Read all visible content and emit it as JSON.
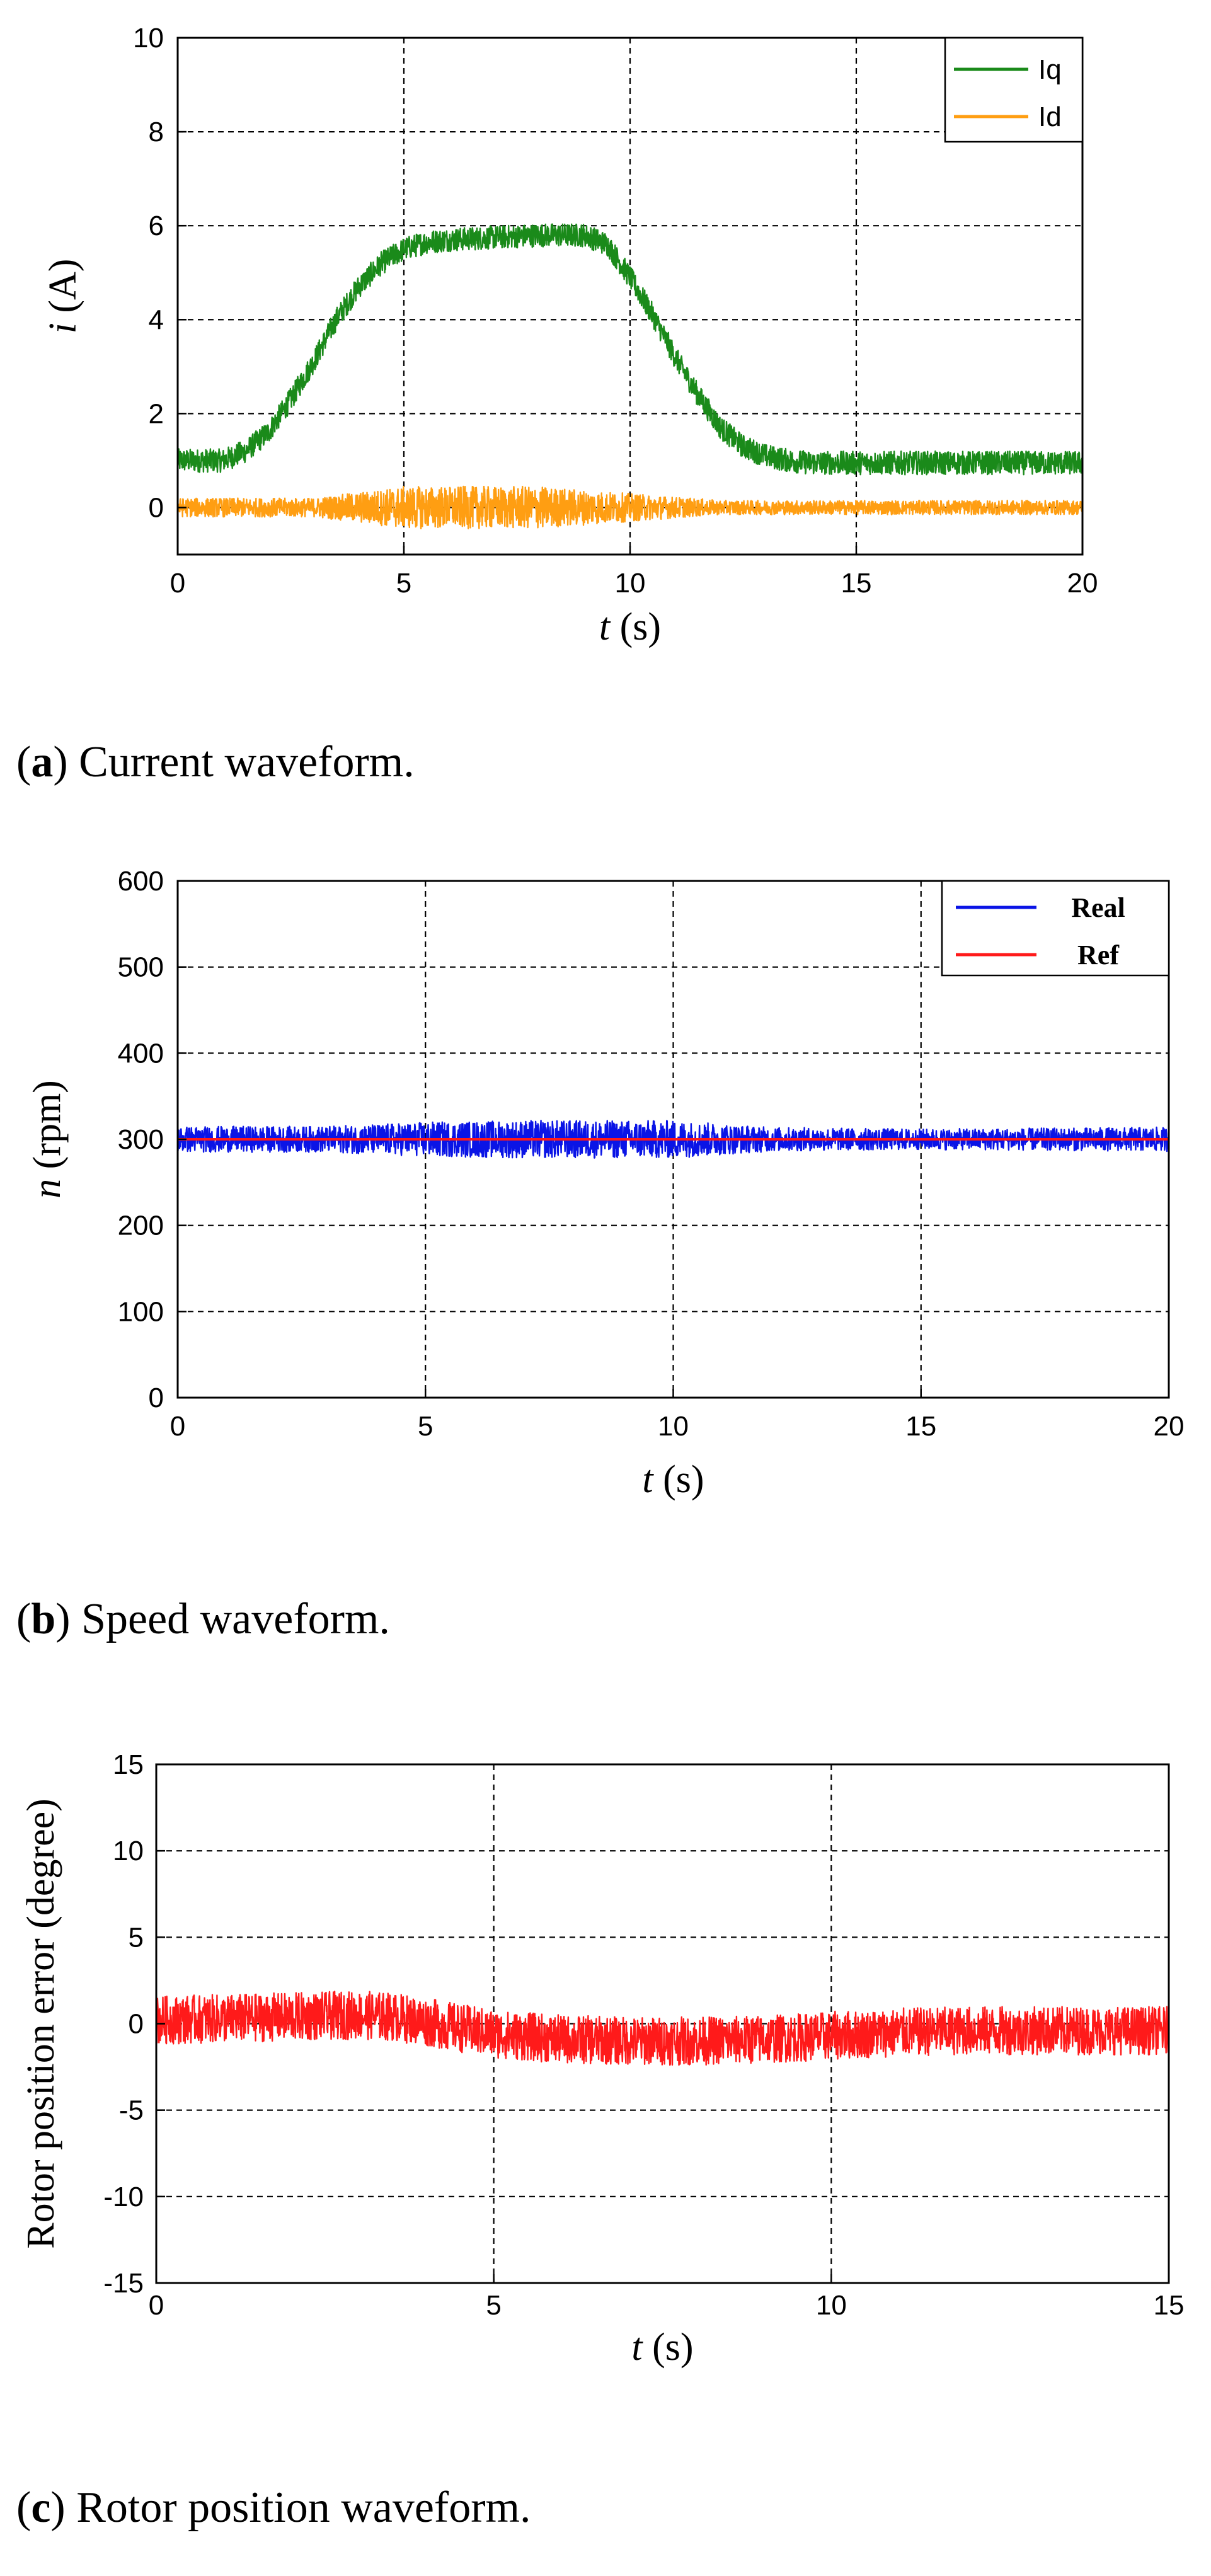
{
  "panels": [
    {
      "id": "a",
      "caption_letter": "a",
      "caption_text": "Current waveform.",
      "chart_data": {
        "type": "line",
        "xlabel_var": "t",
        "xlabel_unit": "(s)",
        "ylabel_var": "i",
        "ylabel_unit": "(A)",
        "xlim": [
          0,
          20
        ],
        "ylim": [
          -1,
          10
        ],
        "xticks": [
          0,
          5,
          10,
          15,
          20
        ],
        "yticks": [
          0,
          2,
          4,
          6,
          8,
          10
        ],
        "grid": true,
        "legend_position": "top-right",
        "series": [
          {
            "name": "Iq",
            "color": "#1a8a1a",
            "x": [
              0,
              1,
              1.5,
              2,
              2.5,
              3,
              3.5,
              4,
              4.5,
              5,
              5.5,
              6,
              7,
              8,
              9,
              9.5,
              10,
              10.5,
              11,
              11.5,
              12,
              12.5,
              13,
              13.5,
              14,
              15,
              16,
              17,
              18,
              19,
              20
            ],
            "y": [
              1.0,
              1.0,
              1.2,
              1.6,
              2.3,
              3.1,
              4.0,
              4.7,
              5.2,
              5.5,
              5.65,
              5.7,
              5.75,
              5.8,
              5.8,
              5.6,
              4.9,
              4.1,
              3.2,
              2.4,
              1.7,
              1.3,
              1.1,
              1.0,
              0.95,
              0.95,
              0.95,
              0.95,
              0.95,
              0.95,
              0.95
            ],
            "noise_amplitude": 0.25
          },
          {
            "name": "Id",
            "color": "#ff9e12",
            "x": [
              0,
              3,
              4,
              5,
              6,
              7,
              8,
              9,
              10,
              11,
              12,
              13,
              15,
              20
            ],
            "y": [
              0,
              0,
              0,
              0,
              0,
              0,
              0,
              0,
              0,
              0,
              0,
              0,
              0,
              0
            ],
            "noise_amplitude_points": [
              [
                0,
                0.2
              ],
              [
                3,
                0.2
              ],
              [
                5,
                0.45
              ],
              [
                8,
                0.45
              ],
              [
                10,
                0.3
              ],
              [
                12,
                0.15
              ],
              [
                20,
                0.15
              ]
            ]
          }
        ]
      }
    },
    {
      "id": "b",
      "caption_letter": "b",
      "caption_text": "Speed waveform.",
      "chart_data": {
        "type": "line",
        "xlabel_var": "t",
        "xlabel_unit": "(s)",
        "ylabel_var": "n",
        "ylabel_unit": "(rpm)",
        "xlim": [
          0,
          20
        ],
        "ylim": [
          0,
          600
        ],
        "xticks": [
          0,
          5,
          10,
          15,
          20
        ],
        "yticks": [
          0,
          100,
          200,
          300,
          400,
          500,
          600
        ],
        "grid": true,
        "legend_position": "top-right",
        "series": [
          {
            "name": "Real",
            "color": "#0a14e6",
            "x": [
              0,
              20
            ],
            "y": [
              300,
              300
            ],
            "noise_amplitude_points": [
              [
                0,
                15
              ],
              [
                3,
                15
              ],
              [
                5,
                20
              ],
              [
                7,
                22
              ],
              [
                10,
                22
              ],
              [
                12,
                14
              ],
              [
                15,
                12
              ],
              [
                20,
                14
              ]
            ]
          },
          {
            "name": "Ref",
            "color": "#ff1a1a",
            "x": [
              0,
              20
            ],
            "y": [
              300,
              300
            ]
          }
        ]
      }
    },
    {
      "id": "c",
      "caption_letter": "c",
      "caption_text": "Rotor position waveform.",
      "chart_data": {
        "type": "line",
        "xlabel_var": "t",
        "xlabel_unit": "(s)",
        "ylabel_text": "Rotor position error (degree)",
        "xlim": [
          0,
          15
        ],
        "ylim": [
          -15,
          15
        ],
        "xticks": [
          0,
          5,
          10,
          15
        ],
        "yticks": [
          -15,
          -10,
          -5,
          0,
          5,
          10,
          15
        ],
        "grid": true,
        "series": [
          {
            "color": "#ff1a1a",
            "x": [
              0,
              1,
              2,
              3,
              3.5,
              4,
              5,
              6,
              7,
              8,
              9,
              10,
              11,
              12,
              13,
              14,
              15
            ],
            "y": [
              0.2,
              0.3,
              0.4,
              0.5,
              0.4,
              0.1,
              -0.6,
              -0.9,
              -1.0,
              -1.0,
              -0.9,
              -0.7,
              -0.5,
              -0.4,
              -0.4,
              -0.4,
              -0.4
            ],
            "noise_amplitude": 1.4
          }
        ]
      }
    }
  ]
}
